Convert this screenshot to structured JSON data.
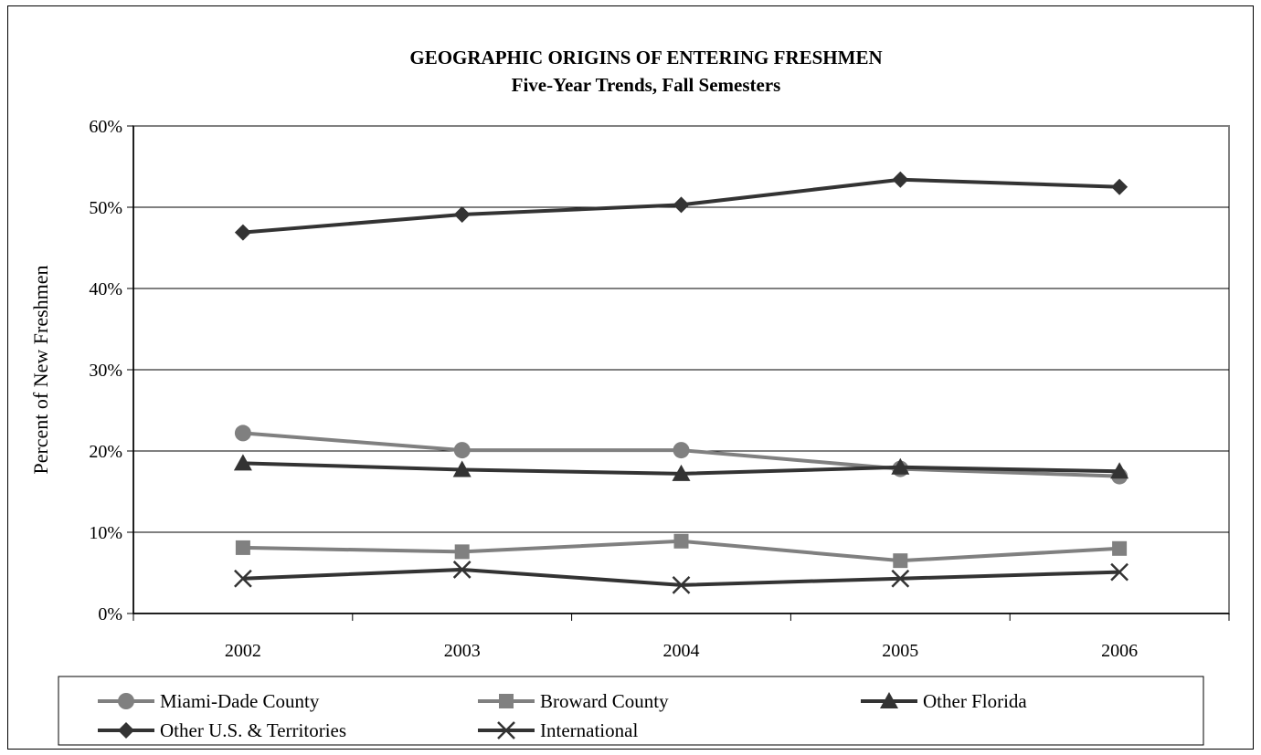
{
  "chart_data": {
    "type": "line",
    "title": "GEOGRAPHIC ORIGINS OF ENTERING FRESHMEN",
    "subtitle": "Five-Year Trends, Fall Semesters",
    "ylabel": "Percent of New Freshmen",
    "xlabel": "",
    "categories": [
      "2002",
      "2003",
      "2004",
      "2005",
      "2006"
    ],
    "ylim": [
      0,
      60
    ],
    "yticks": [
      "0%",
      "10%",
      "20%",
      "30%",
      "40%",
      "50%",
      "60%"
    ],
    "grid": true,
    "legend_position": "bottom",
    "series": [
      {
        "name": "Miami-Dade County",
        "values": [
          22.2,
          20.1,
          20.1,
          17.8,
          16.9
        ],
        "color": "#808080",
        "marker": "circle"
      },
      {
        "name": "Broward County",
        "values": [
          8.1,
          7.6,
          8.9,
          6.5,
          8.0
        ],
        "color": "#808080",
        "marker": "square"
      },
      {
        "name": "Other Florida",
        "values": [
          18.5,
          17.7,
          17.2,
          18.0,
          17.5
        ],
        "color": "#333333",
        "marker": "triangle"
      },
      {
        "name": "Other U.S. & Territories",
        "values": [
          46.9,
          49.1,
          50.3,
          53.4,
          52.5
        ],
        "color": "#333333",
        "marker": "diamond"
      },
      {
        "name": "International",
        "values": [
          4.3,
          5.4,
          3.5,
          4.3,
          5.1
        ],
        "color": "#333333",
        "marker": "x"
      }
    ]
  }
}
